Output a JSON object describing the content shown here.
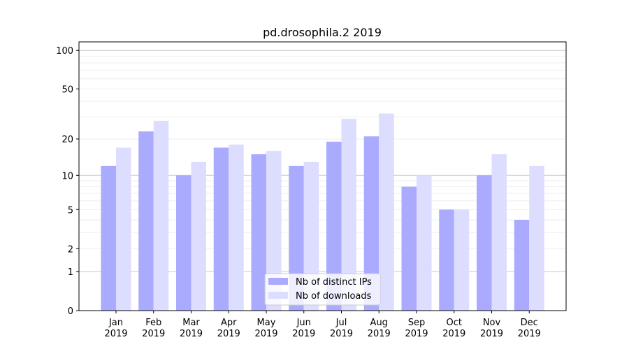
{
  "chart_data": {
    "type": "bar",
    "title": "pd.drosophila.2 2019",
    "xlabel": "",
    "ylabel": "",
    "yscale": "log10(1+y)",
    "ylim": [
      0,
      110
    ],
    "grid": true,
    "categories": [
      "Jan\n2019",
      "Feb\n2019",
      "Mar\n2019",
      "Apr\n2019",
      "May\n2019",
      "Jun\n2019",
      "Jul\n2019",
      "Aug\n2019",
      "Sep\n2019",
      "Oct\n2019",
      "Nov\n2019",
      "Dec\n2019"
    ],
    "yticks": [
      0,
      1,
      2,
      5,
      10,
      20,
      50,
      100
    ],
    "series": [
      {
        "name": "Nb of distinct IPs",
        "color": "#aaaaff",
        "values": [
          12,
          23,
          10,
          17,
          15,
          12,
          19,
          21,
          8,
          5,
          10,
          4
        ]
      },
      {
        "name": "Nb of downloads",
        "color": "#ddddff",
        "values": [
          17,
          28,
          13,
          18,
          16,
          13,
          29,
          32,
          10,
          5,
          15,
          12
        ]
      }
    ],
    "legend_position": "lower-center"
  }
}
